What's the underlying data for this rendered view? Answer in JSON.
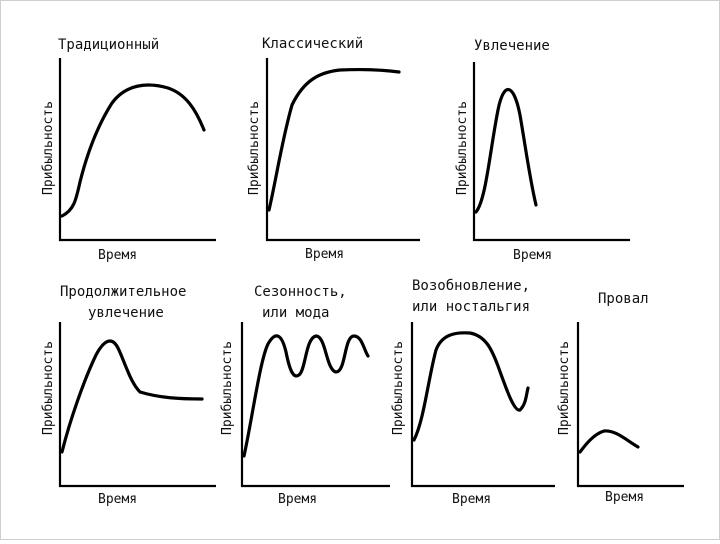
{
  "x_axis_label": "Время",
  "y_axis_label": "Прибыльность",
  "panels": [
    {
      "id": "traditional",
      "title_lines": [
        "Традиционный"
      ]
    },
    {
      "id": "classic",
      "title_lines": [
        "Классический"
      ]
    },
    {
      "id": "fad",
      "title_lines": [
        "Увлечение"
      ]
    },
    {
      "id": "extended-fad",
      "title_lines": [
        "Продолжительное",
        "увлечение"
      ]
    },
    {
      "id": "seasonal",
      "title_lines": [
        "Сезонность,",
        "или мода"
      ]
    },
    {
      "id": "revival",
      "title_lines": [
        "Возобновление,",
        "или ностальгия"
      ]
    },
    {
      "id": "bust",
      "title_lines": [
        "Провал"
      ]
    }
  ]
}
